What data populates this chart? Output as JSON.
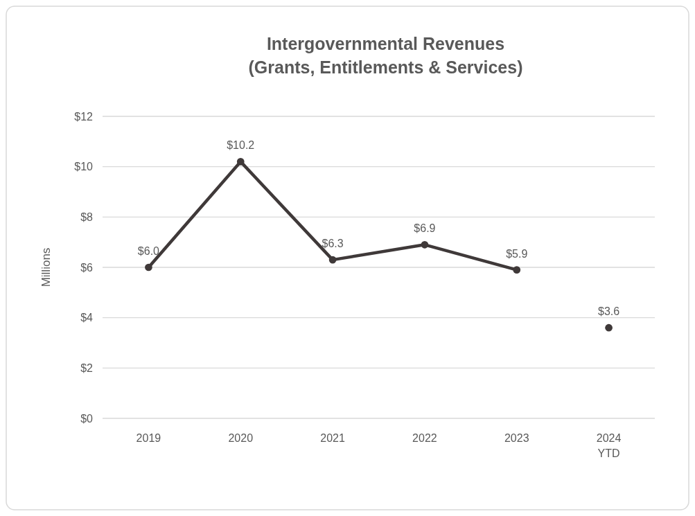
{
  "chart_data": {
    "type": "line",
    "title": "Intergovernmental Revenues\n(Grants, Entitlements & Services)",
    "ylabel": "Millions",
    "categories": [
      "2019",
      "2020",
      "2021",
      "2022",
      "2023",
      "2024\nYTD"
    ],
    "series": [
      {
        "color": "#3f3939",
        "values": [
          6.0,
          10.2,
          6.3,
          6.9,
          5.9,
          null
        ],
        "value_labels": [
          "$6.0",
          "$10.2",
          "$6.3",
          "$6.9",
          "$5.9",
          null
        ]
      },
      {
        "type": "scatter",
        "color": "#3f3939",
        "values": [
          null,
          null,
          null,
          null,
          null,
          3.6
        ],
        "value_labels": [
          null,
          null,
          null,
          null,
          null,
          "$3.6"
        ]
      }
    ],
    "ylim": [
      0,
      12
    ],
    "yticks": [
      {
        "value": 0,
        "label": "$0"
      },
      {
        "value": 2,
        "label": "$2"
      },
      {
        "value": 4,
        "label": "$4"
      },
      {
        "value": 6,
        "label": "$6"
      },
      {
        "value": 8,
        "label": "$8"
      },
      {
        "value": 10,
        "label": "$10"
      },
      {
        "value": 12,
        "label": "$12"
      }
    ],
    "grid": "y",
    "marker": "circle"
  }
}
